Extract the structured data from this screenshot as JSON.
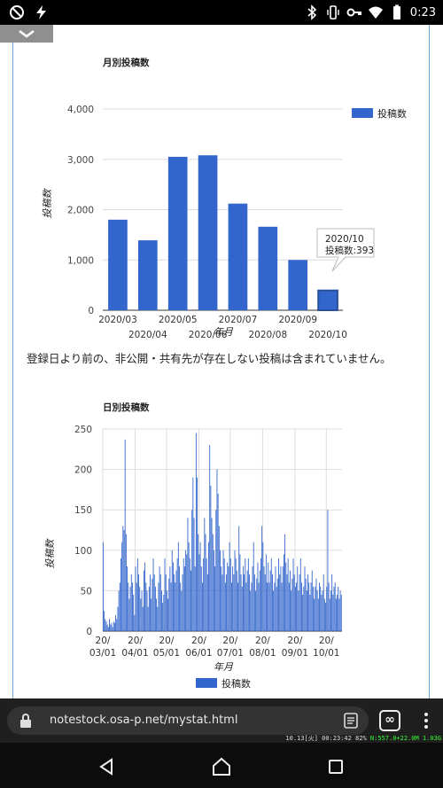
{
  "status_bar": {
    "time": "0:23",
    "left_icons": [
      "rotate-lock-icon",
      "flash-icon"
    ],
    "right_icons": [
      "bluetooth-icon",
      "vibrate-icon",
      "key-icon",
      "wifi-icon",
      "battery-icon"
    ]
  },
  "monthly_chart": {
    "title": "月別投稿数",
    "xlabel": "年月",
    "ylabel": "投稿数",
    "legend": "投稿数",
    "y_ticks": [
      "0",
      "1,000",
      "2,000",
      "3,000",
      "4,000"
    ],
    "tooltip_line1": "2020/10",
    "tooltip_line2": "投稿数:393"
  },
  "note": "登録日より前の、非公開・共有先が存在しない投稿は含まれていません。",
  "daily_chart": {
    "title": "日別投稿数",
    "xlabel": "年月",
    "ylabel": "投稿数",
    "legend": "投稿数",
    "y_ticks": [
      "0",
      "50",
      "100",
      "150",
      "200",
      "250"
    ],
    "x_ticks_top": [
      "20/",
      "20/",
      "20/",
      "20/",
      "20/",
      "20/",
      "20/",
      "20/"
    ],
    "x_ticks_bottom": [
      "03/01",
      "04/01",
      "05/01",
      "06/01",
      "07/01",
      "08/01",
      "09/01",
      "10/01"
    ]
  },
  "url_bar": {
    "url": "notestock.osa-p.net/mystat.html",
    "tabs_glyph": "∞"
  },
  "perf_overlay": {
    "text": "10.13[火] 00:23:42  82%",
    "net": "N:557.0+22.0M 1.03G"
  },
  "chart_data": [
    {
      "type": "bar",
      "title": "月別投稿数",
      "xlabel": "年月",
      "ylabel": "投稿数",
      "categories": [
        "2020/03",
        "2020/04",
        "2020/05",
        "2020/06",
        "2020/07",
        "2020/08",
        "2020/09",
        "2020/10"
      ],
      "series": [
        {
          "name": "投稿数",
          "values": [
            1800,
            1390,
            3050,
            3080,
            2120,
            1660,
            1000,
            393
          ]
        }
      ],
      "ylim": [
        0,
        4000
      ],
      "grid": true,
      "legend": "top-right",
      "color": "#3366cc",
      "highlighted": "2020/10"
    },
    {
      "type": "bar",
      "title": "日別投稿数",
      "xlabel": "年月",
      "ylabel": "投稿数",
      "start_date": "2020/03/01",
      "series": [
        {
          "name": "投稿数",
          "values": [
            110,
            25,
            15,
            12,
            8,
            5,
            15,
            8,
            10,
            5,
            12,
            10,
            20,
            15,
            30,
            50,
            60,
            90,
            110,
            130,
            125,
            237,
            120,
            80,
            60,
            40,
            55,
            70,
            60,
            45,
            20,
            80,
            60,
            90,
            70,
            55,
            40,
            50,
            30,
            75,
            85,
            60,
            50,
            30,
            55,
            70,
            40,
            65,
            90,
            70,
            55,
            40,
            30,
            60,
            80,
            70,
            50,
            35,
            45,
            90,
            70,
            50,
            40,
            65,
            80,
            60,
            100,
            85,
            70,
            60,
            75,
            90,
            110,
            80,
            60,
            50,
            70,
            90,
            80,
            100,
            95,
            140,
            110,
            90,
            75,
            150,
            190,
            140,
            80,
            245,
            190,
            120,
            95,
            110,
            80,
            60,
            90,
            140,
            120,
            90,
            70,
            110,
            230,
            180,
            140,
            120,
            100,
            80,
            150,
            200,
            170,
            130,
            100,
            80,
            70,
            100,
            90,
            60,
            70,
            85,
            80,
            110,
            90,
            60,
            80,
            70,
            100,
            90,
            75,
            60,
            130,
            95,
            70,
            55,
            80,
            70,
            90,
            60,
            75,
            90,
            70,
            50,
            60,
            80,
            110,
            70,
            50,
            65,
            85,
            60,
            75,
            90,
            130,
            110,
            80,
            70,
            95,
            60,
            85,
            60,
            75,
            90,
            70,
            50,
            60,
            80,
            55,
            65,
            90,
            70,
            80,
            60,
            80,
            95,
            120,
            85,
            70,
            90,
            60,
            75,
            50,
            65,
            90,
            70,
            55,
            60,
            80,
            50,
            70,
            90,
            60,
            45,
            55,
            80,
            65,
            50,
            70,
            60,
            45,
            60,
            75,
            55,
            40,
            55,
            65,
            50,
            40,
            60,
            55,
            45,
            50,
            70,
            40,
            35,
            55,
            150,
            60,
            40,
            50,
            70,
            45,
            55,
            60,
            40,
            45,
            55,
            40,
            50,
            45
          ]
        }
      ],
      "ylim": [
        0,
        250
      ],
      "grid": true,
      "legend": "bottom",
      "color": "#3366cc"
    }
  ]
}
